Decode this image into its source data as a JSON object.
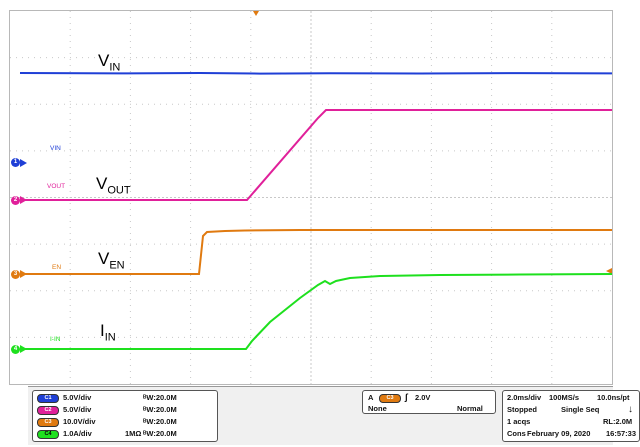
{
  "colors": {
    "vin": "#1f3fd6",
    "vout": "#e0209a",
    "en": "#e07a10",
    "iin": "#1ee01e",
    "grid": "#c8c8c8"
  },
  "annotations": {
    "vin": {
      "main": "V",
      "sub": "IN"
    },
    "vout": {
      "main": "V",
      "sub": "OUT"
    },
    "ven": {
      "main": "V",
      "sub": "EN"
    },
    "iin": {
      "main": "I",
      "sub": "IN"
    }
  },
  "channel_labels": {
    "vin": "VIN",
    "vout": "VOUT",
    "en": "EN",
    "iin": "I-IN"
  },
  "markers": {
    "ch1": "1",
    "ch2": "2",
    "ch3": "3",
    "ch4": "4"
  },
  "vertical_settings": [
    {
      "chip": "C1",
      "scale": "5.0V/div",
      "prefix": "",
      "bw": "ᴮW:20.0M"
    },
    {
      "chip": "C2",
      "scale": "5.0V/div",
      "prefix": "",
      "bw": "ᴮW:20.0M"
    },
    {
      "chip": "C3",
      "scale": "10.0V/div",
      "prefix": "",
      "bw": "ᴮW:20.0M"
    },
    {
      "chip": "C4",
      "scale": "1.0A/div",
      "prefix": "1MΩ",
      "bw": "ᴮW:20.0M"
    }
  ],
  "trigger": {
    "a": "A",
    "chip": "C3",
    "level": "2.0V",
    "coupling": "None",
    "mode": "Normal"
  },
  "acquisition": {
    "timebase": "2.0ms/div",
    "rate": "100MS/s",
    "resolution": "10.0ns/pt",
    "state": "Stopped",
    "seq": "Single Seq",
    "acqs": "1 acqs",
    "rl": "RL:2.0M",
    "cons": "Cons",
    "date": "February 09, 2020",
    "time": "16:57:33"
  }
}
